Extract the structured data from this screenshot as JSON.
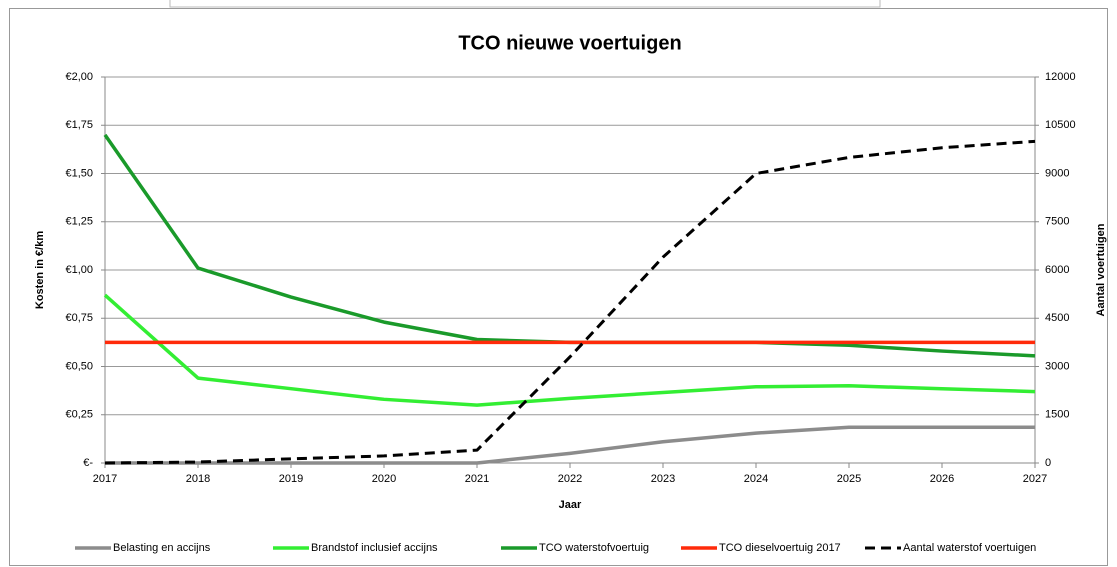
{
  "chart_data": {
    "type": "line",
    "title": "TCO nieuwe voertuigen",
    "x_label": "Jaar",
    "y_label": "Kosten in €/km",
    "y2_label": "Aantal voertuigen",
    "x": [
      2017,
      2018,
      2019,
      2020,
      2021,
      2022,
      2023,
      2024,
      2025,
      2026,
      2027
    ],
    "xlim": [
      2017,
      2027
    ],
    "xticks": [
      2017,
      2018,
      2019,
      2020,
      2021,
      2022,
      2023,
      2024,
      2025,
      2026,
      2027
    ],
    "ylim": [
      0,
      2
    ],
    "yticks": [
      {
        "value": 0,
        "label": "€-"
      },
      {
        "value": 0.25,
        "label": "€0,25"
      },
      {
        "value": 0.5,
        "label": "€0,50"
      },
      {
        "value": 0.75,
        "label": "€0,75"
      },
      {
        "value": 1,
        "label": "€1,00"
      },
      {
        "value": 1.25,
        "label": "€1,25"
      },
      {
        "value": 1.5,
        "label": "€1,50"
      },
      {
        "value": 1.75,
        "label": "€1,75"
      },
      {
        "value": 2,
        "label": "€2,00"
      }
    ],
    "y2lim": [
      0,
      12000
    ],
    "y2ticks": [
      0,
      1500,
      3000,
      4500,
      6000,
      7500,
      9000,
      10500,
      12000
    ],
    "grid": true,
    "legend": "bottom",
    "series": [
      {
        "name": "Belasting en accijns",
        "color": "#8c8c8c",
        "values": [
          0,
          0,
          0,
          0,
          0,
          0.05,
          0.11,
          0.155,
          0.185,
          0.185,
          0.185
        ]
      },
      {
        "name": "Brandstof inclusief accijns",
        "color": "#33ee33",
        "values": [
          0.87,
          0.44,
          0.385,
          0.33,
          0.3,
          0.335,
          0.365,
          0.395,
          0.4,
          0.385,
          0.37
        ]
      },
      {
        "name": "TCO waterstofvoertuig",
        "color": "#1a9a2a",
        "values": [
          1.7,
          1.01,
          0.86,
          0.73,
          0.64,
          0.625,
          0.625,
          0.625,
          0.61,
          0.58,
          0.555
        ]
      },
      {
        "name": "TCO dieselvoertuig 2017",
        "color": "#ff2a0a",
        "values": [
          0.625,
          0.625,
          0.625,
          0.625,
          0.625,
          0.625,
          0.625,
          0.625,
          0.625,
          0.625,
          0.625
        ]
      },
      {
        "name": "Aantal waterstof voertuigen",
        "color": "#000000",
        "dash": true,
        "axis": "y2",
        "values": [
          0,
          30,
          130,
          220,
          400,
          3300,
          6400,
          9000,
          9500,
          9800,
          10000
        ]
      }
    ]
  }
}
